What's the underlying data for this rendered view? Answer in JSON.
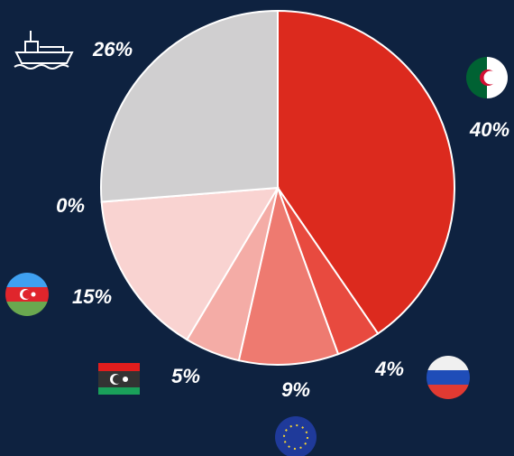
{
  "chart_data": {
    "type": "pie",
    "values": [
      40,
      4,
      9,
      5,
      15,
      0,
      26
    ],
    "value_labels": [
      "40%",
      "4%",
      "9%",
      "5%",
      "15%",
      "0%",
      "26%"
    ],
    "colors": [
      "#dc2a1e",
      "#e84a3f",
      "#ee7a70",
      "#f4aca6",
      "#f9d3d1",
      "#f0e6e6",
      "#d0cfd0"
    ]
  }
}
